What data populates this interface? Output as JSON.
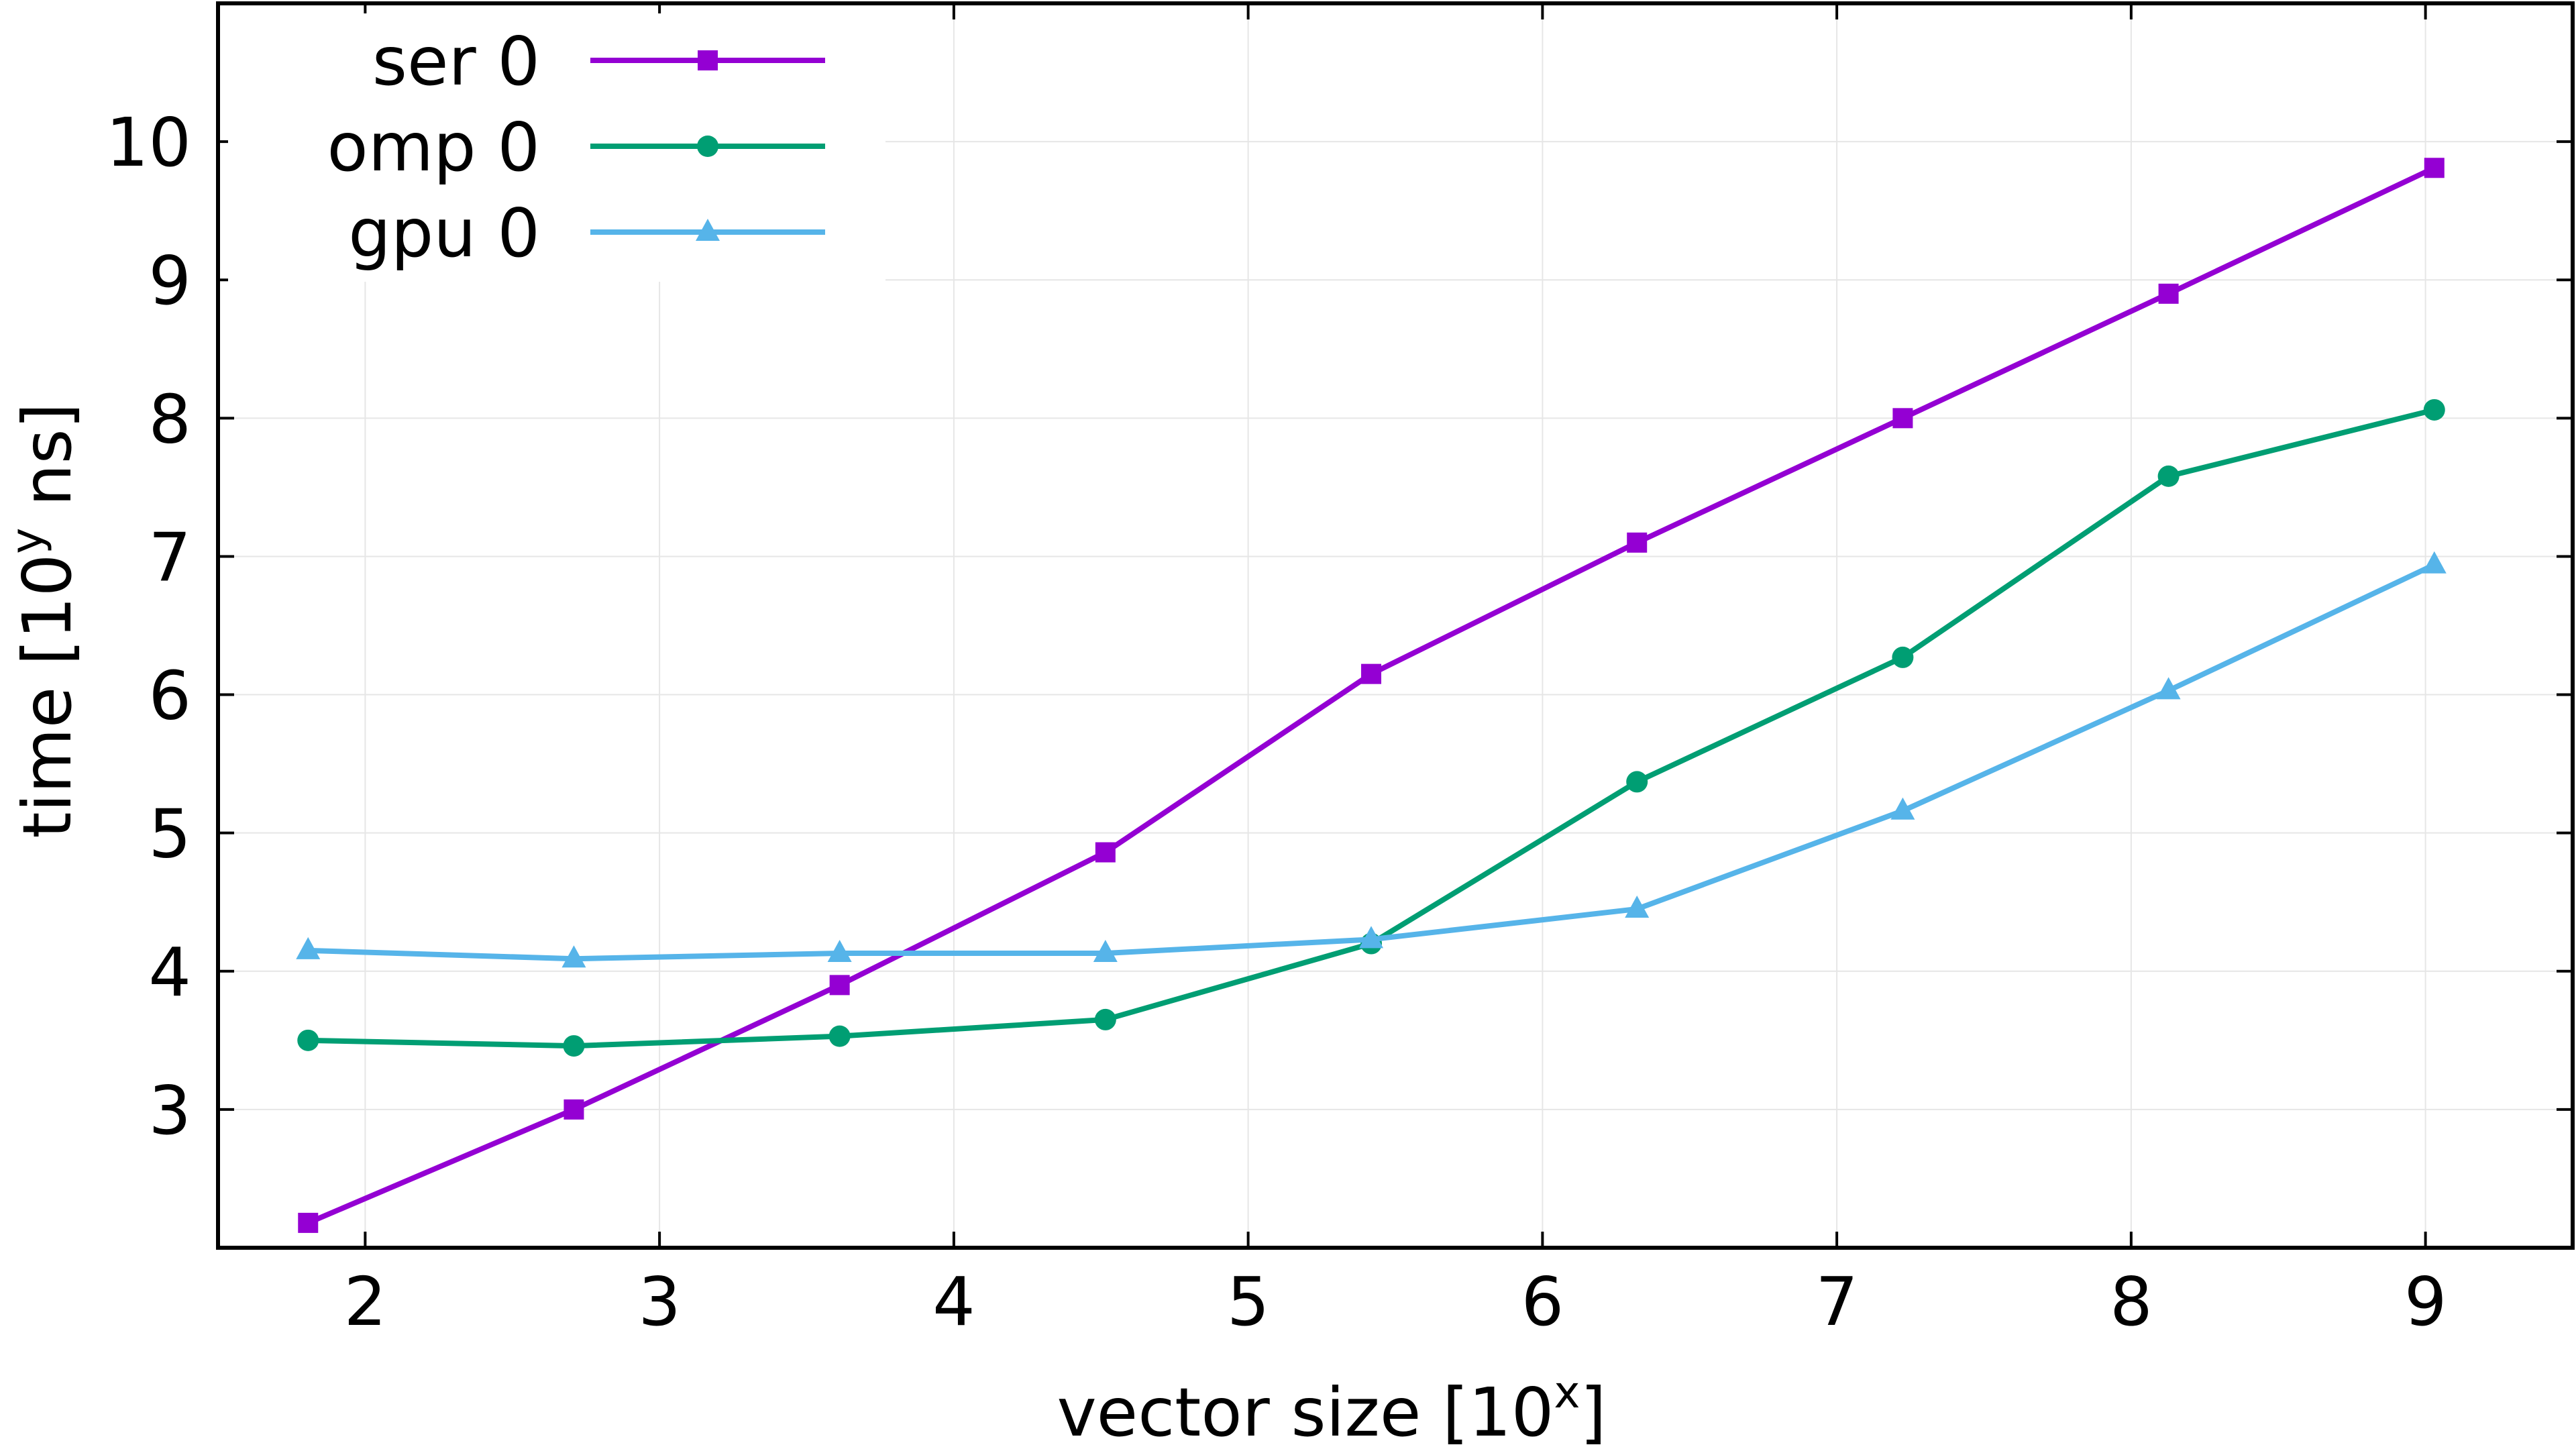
{
  "chart_data": {
    "type": "line",
    "xlabel": "vector size [10",
    "xlabel_sup": "x",
    "xlabel_end": "]",
    "ylabel": "time [10",
    "ylabel_sup": "y",
    "ylabel_end": " ns]",
    "xlim": [
      1.5,
      9.5
    ],
    "ylim": [
      2,
      11
    ],
    "xticks": [
      2,
      3,
      4,
      5,
      6,
      7,
      8,
      9
    ],
    "yticks": [
      3,
      4,
      5,
      6,
      7,
      8,
      9,
      10
    ],
    "grid": true,
    "legend_position": "top-left",
    "series": [
      {
        "name": "ser 0",
        "color": "#9400d3",
        "marker": "square",
        "x": [
          1.806,
          2.709,
          3.612,
          4.515,
          5.418,
          6.321,
          7.224,
          8.127,
          9.03
        ],
        "y": [
          2.18,
          3.0,
          3.9,
          4.86,
          6.15,
          7.1,
          8.0,
          8.9,
          9.81
        ]
      },
      {
        "name": "omp 0",
        "color": "#009e73",
        "marker": "circle",
        "x": [
          1.806,
          2.709,
          3.612,
          4.515,
          5.418,
          6.321,
          7.224,
          8.127,
          9.03
        ],
        "y": [
          3.5,
          3.46,
          3.53,
          3.65,
          4.2,
          5.37,
          6.27,
          7.58,
          8.06
        ]
      },
      {
        "name": "gpu 0",
        "color": "#56b4e9",
        "marker": "triangle",
        "x": [
          1.806,
          2.709,
          3.612,
          4.515,
          5.418,
          6.321,
          7.224,
          8.127,
          9.03
        ],
        "y": [
          4.15,
          4.09,
          4.13,
          4.13,
          4.23,
          4.45,
          5.16,
          6.03,
          6.94
        ]
      }
    ]
  }
}
